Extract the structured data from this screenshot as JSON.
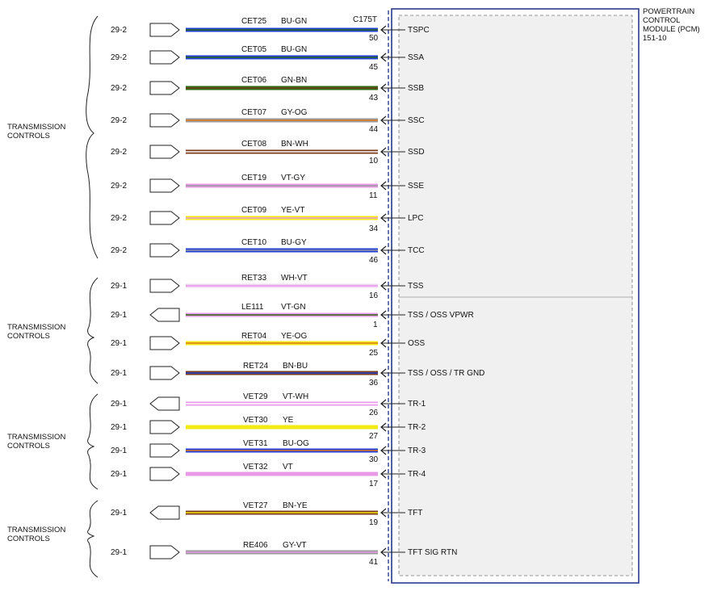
{
  "module": {
    "title_lines": [
      "POWERTRAIN",
      "CONTROL",
      "MODULE (PCM)",
      "151-10"
    ],
    "connector": "C175T"
  },
  "groups": [
    {
      "lines": [
        "TRANSMISSION",
        "CONTROLS"
      ]
    },
    {
      "lines": [
        "TRANSMISSION",
        "CONTROLS"
      ]
    },
    {
      "lines": [
        "TRANSMISSION",
        "CONTROLS"
      ]
    },
    {
      "lines": [
        "TRANSMISSION",
        "CONTROLS"
      ]
    }
  ],
  "colors": {
    "BU": "#1f3fd8",
    "GN": "#2a6a10",
    "BN": "#7a3a1a",
    "GY": "#9a9a9a",
    "OG": "#e07a20",
    "WH": "#ffffff",
    "VT": "#e89ae8",
    "YE": "#f2ea12",
    "BK": "#111111",
    "frame": "#2a3a8a"
  },
  "wires": [
    {
      "ref": "29-2",
      "circuit": "CET25",
      "color": "BU-GN",
      "pin": "50",
      "signal": "TSPC"
    },
    {
      "ref": "29-2",
      "circuit": "CET05",
      "color": "BU-GN",
      "pin": "45",
      "signal": "SSA"
    },
    {
      "ref": "29-2",
      "circuit": "CET06",
      "color": "GN-BN",
      "pin": "43",
      "signal": "SSB"
    },
    {
      "ref": "29-2",
      "circuit": "CET07",
      "color": "GY-OG",
      "pin": "44",
      "signal": "SSC"
    },
    {
      "ref": "29-2",
      "circuit": "CET08",
      "color": "BN-WH",
      "pin": "10",
      "signal": "SSD"
    },
    {
      "ref": "29-2",
      "circuit": "CET19",
      "color": "VT-GY",
      "pin": "11",
      "signal": "SSE"
    },
    {
      "ref": "29-2",
      "circuit": "CET09",
      "color": "YE-VT",
      "pin": "34",
      "signal": "LPC"
    },
    {
      "ref": "29-2",
      "circuit": "CET10",
      "color": "BU-GY",
      "pin": "46",
      "signal": "TCC"
    },
    {
      "ref": "29-1",
      "circuit": "RET33",
      "color": "WH-VT",
      "pin": "16",
      "signal": "TSS"
    },
    {
      "ref": "29-1",
      "circuit": "LE111",
      "color": "VT-GN",
      "pin": "1",
      "signal": "TSS / OSS VPWR"
    },
    {
      "ref": "29-1",
      "circuit": "RET04",
      "color": "YE-OG",
      "pin": "25",
      "signal": "OSS"
    },
    {
      "ref": "29-1",
      "circuit": "RET24",
      "color": "BN-BU",
      "pin": "36",
      "signal": "TSS / OSS / TR GND"
    },
    {
      "ref": "29-1",
      "circuit": "VET29",
      "color": "VT-WH",
      "pin": "26",
      "signal": "TR-1"
    },
    {
      "ref": "29-1",
      "circuit": "VET30",
      "color": "YE",
      "pin": "27",
      "signal": "TR-2"
    },
    {
      "ref": "29-1",
      "circuit": "VET31",
      "color": "BU-OG",
      "pin": "30",
      "signal": "TR-3"
    },
    {
      "ref": "29-1",
      "circuit": "VET32",
      "color": "VT",
      "pin": "17",
      "signal": "TR-4"
    },
    {
      "ref": "29-1",
      "circuit": "VET27",
      "color": "BN-YE",
      "pin": "19",
      "signal": "TFT"
    },
    {
      "ref": "29-1",
      "circuit": "RE406",
      "color": "GY-VT",
      "pin": "41",
      "signal": "TFT SIG RTN"
    }
  ]
}
